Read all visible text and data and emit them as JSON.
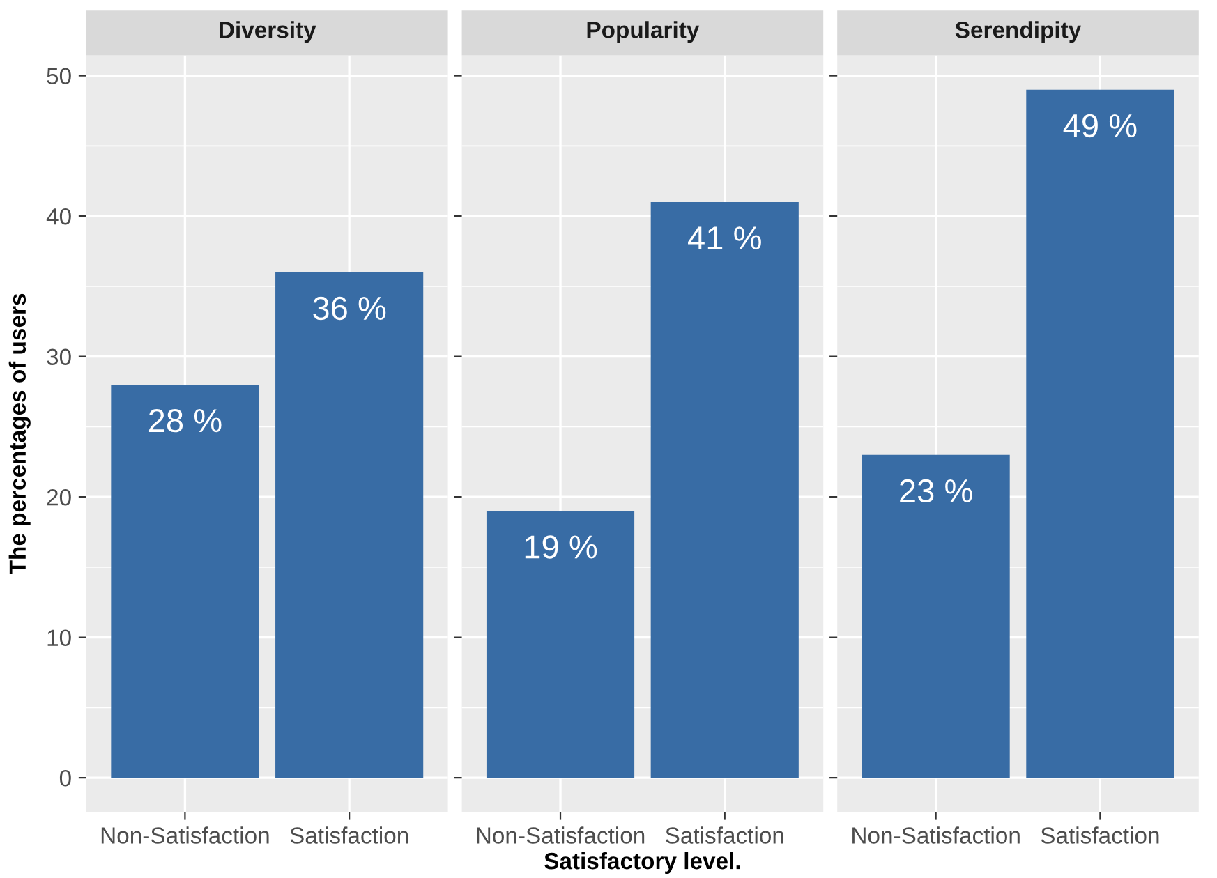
{
  "chart_data": [
    {
      "type": "bar",
      "title": "Diversity",
      "ylabel": "The percentages of users",
      "categories": [
        "Non-Satisfaction",
        "Satisfaction"
      ],
      "values": [
        28,
        36
      ],
      "value_labels": [
        "28 %",
        "36 %"
      ],
      "color": "#386ca5",
      "ylim": [
        -2.45,
        51.45
      ],
      "yticks": [
        0,
        10,
        20,
        30,
        40,
        50
      ],
      "grid": true
    },
    {
      "type": "bar",
      "title": "Popularity",
      "xlabel": "Satisfactory level.",
      "categories": [
        "Non-Satisfaction",
        "Satisfaction"
      ],
      "values": [
        19,
        41
      ],
      "value_labels": [
        "19 %",
        "41 %"
      ],
      "color": "#386ca5",
      "ylim": [
        -2.45,
        51.45
      ],
      "yticks": [
        0,
        10,
        20,
        30,
        40,
        50
      ],
      "grid": true,
      "tick_labels": "x"
    },
    {
      "type": "bar",
      "title": "Serendipity",
      "categories": [
        "Non-Satisfaction",
        "Satisfaction"
      ],
      "values": [
        23,
        49
      ],
      "value_labels": [
        "23 %",
        "49 %"
      ],
      "color": "#386ca5",
      "ylim": [
        -2.45,
        51.45
      ],
      "yticks": [
        0,
        10,
        20,
        30,
        40,
        50
      ],
      "grid": true,
      "tick_labels": "x"
    }
  ]
}
